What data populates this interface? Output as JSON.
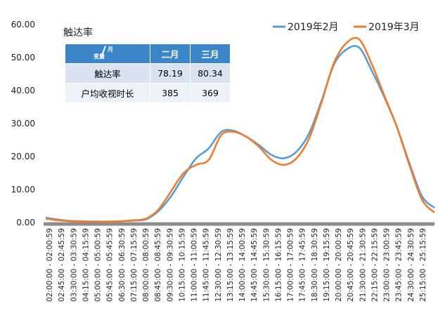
{
  "chart_data": {
    "type": "line",
    "title": "触达率",
    "ylim": [
      0,
      60
    ],
    "yticks": [
      "0.00",
      "10.00",
      "20.00",
      "30.00",
      "40.00",
      "50.00",
      "60.00"
    ],
    "grid": false,
    "legend_position": "top-right",
    "x_labels": [
      "02:00:00 - 02:00:59",
      "02:45:00 - 02:45:59",
      "03:30:00 - 03:30:59",
      "04:15:00 - 04:15:59",
      "05:00:00 - 05:00:59",
      "05:45:00 - 05:45:59",
      "06:30:00 - 06:30:59",
      "07:15:00 - 07:15:59",
      "08:00:00 - 08:00:59",
      "08:45:00 - 08:45:59",
      "09:30:00 - 09:30:59",
      "10:15:00 - 10:15:59",
      "11:00:00 - 11:00:59",
      "11:45:00 - 11:45:59",
      "12:30:00 - 12:30:59",
      "13:15:00 - 13:15:59",
      "14:00:00 - 14:00:59",
      "14:45:00 - 14:45:59",
      "15:30:00 - 15:30:59",
      "16:15:00 - 16:15:59",
      "17:00:00 - 17:00:59",
      "17:45:00 - 17:45:59",
      "18:30:00 - 18:30:59",
      "19:15:00 - 19:15:59",
      "20:00:00 - 20:00:59",
      "20:45:00 - 20:45:59",
      "21:30:00 - 21:30:59",
      "22:15:00 - 22:15:59",
      "23:00:00 - 23:00:59",
      "23:45:00 - 23:45:59",
      "24:30:00 - 24:30:59",
      "25:15:00 - 25:15:59"
    ],
    "series": [
      {
        "name": "2019年2月",
        "color": "#5b9bd5",
        "values": [
          1.5,
          0.9,
          0.5,
          0.4,
          0.3,
          0.3,
          0.4,
          0.6,
          1.0,
          3.5,
          8.0,
          14.0,
          19.5,
          22.5,
          27.5,
          27.8,
          26.0,
          23.5,
          20.5,
          19.5,
          21.5,
          27.0,
          37.0,
          48.0,
          52.5,
          53.0,
          46.0,
          38.0,
          29.0,
          18.0,
          8.0,
          4.5
        ]
      },
      {
        "name": "2019年3月",
        "color": "#ed7d31",
        "values": [
          1.2,
          0.7,
          0.4,
          0.3,
          0.3,
          0.3,
          0.4,
          0.7,
          1.2,
          4.0,
          9.5,
          15.0,
          17.5,
          19.0,
          26.5,
          27.5,
          26.0,
          23.0,
          19.0,
          17.5,
          19.5,
          25.5,
          36.5,
          48.5,
          54.5,
          55.5,
          48.0,
          38.5,
          29.0,
          17.5,
          7.0,
          3.0
        ]
      }
    ],
    "table": {
      "corner_top": "月",
      "corner_bottom": "变量",
      "headers": [
        "二月",
        "三月"
      ],
      "rows": [
        {
          "label": "触达率",
          "v1": "78.19",
          "v2": "80.34"
        },
        {
          "label": "户均收视时长",
          "v1": "385",
          "v2": "369"
        }
      ]
    }
  }
}
